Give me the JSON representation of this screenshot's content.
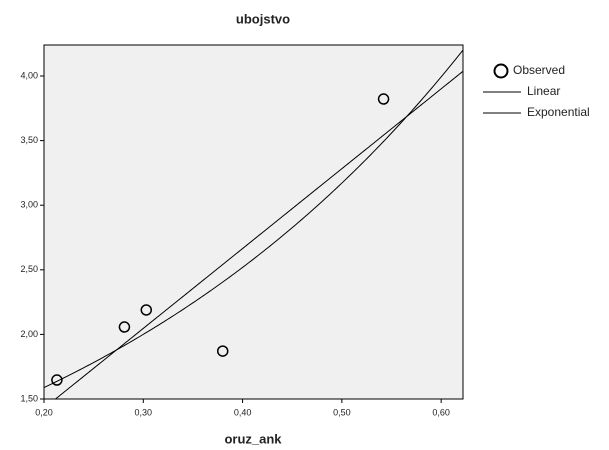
{
  "chart_data": {
    "type": "scatter",
    "title": "ubojstvo",
    "x_label": "oruz_ank",
    "x": [
      0.213,
      0.281,
      0.303,
      0.38,
      0.542
    ],
    "series": [
      {
        "name": "Observed",
        "values": [
          1.647,
          2.057,
          2.189,
          1.871,
          3.822
        ],
        "marker": "circle"
      }
    ],
    "fits": [
      {
        "name": "Linear",
        "model": "linear"
      },
      {
        "name": "Exponential",
        "model": "exponential"
      }
    ],
    "xlim": [
      0.2,
      0.622
    ],
    "ylim": [
      1.5,
      4.24
    ],
    "xticks": [
      {
        "value": 0.2,
        "label": "0,20"
      },
      {
        "value": 0.3,
        "label": "0,30"
      },
      {
        "value": 0.4,
        "label": "0,40"
      },
      {
        "value": 0.5,
        "label": "0,50"
      },
      {
        "value": 0.6,
        "label": "0,60"
      }
    ],
    "yticks": [
      {
        "value": 1.5,
        "label": "1,50"
      },
      {
        "value": 2.0,
        "label": "2,00"
      },
      {
        "value": 2.5,
        "label": "2,50"
      },
      {
        "value": 3.0,
        "label": "3,00"
      },
      {
        "value": 3.5,
        "label": "3,50"
      },
      {
        "value": 4.0,
        "label": "4,00"
      }
    ],
    "legend": "right"
  }
}
